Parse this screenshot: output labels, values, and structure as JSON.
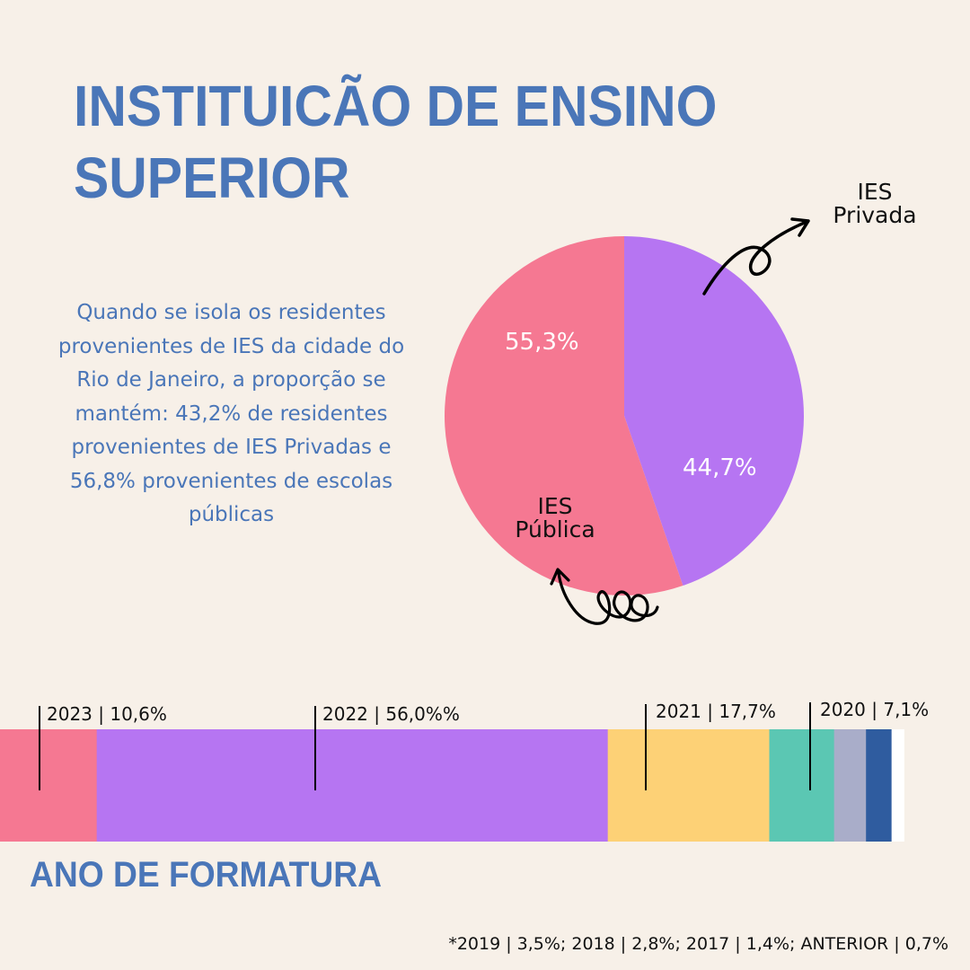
{
  "title": {
    "line1": "INSTITUICÃO DE ENSINO",
    "line2": "SUPERIOR"
  },
  "description": "Quando se isola os residentes provenientes de IES da cidade do Rio de Janeiro, a proporção se mantém: 43,2% de residentes provenientes de IES Privadas e 56,8% provenientes de escolas públicas",
  "colors": {
    "background": "#f7f0e8",
    "title_blue": "#4a76b8",
    "pink": "#f57892",
    "purple": "#b675f2",
    "yellow": "#fdd176",
    "teal": "#5bc7b3",
    "lavender": "#a9adc9",
    "navy": "#2f5c9f",
    "white": "#ffffff"
  },
  "chart_data": [
    {
      "type": "pie",
      "slices": [
        {
          "label": "IES Privada",
          "value": 44.7,
          "display": "44,7%",
          "color": "#b675f2"
        },
        {
          "label": "IES Pública",
          "value": 55.3,
          "display": "55,3%",
          "color": "#f57892"
        }
      ],
      "annotations": {
        "privada_line1": "IES",
        "privada_line2": "Privada",
        "publica_line1": "IES",
        "publica_line2": "Pública"
      }
    },
    {
      "type": "bar",
      "orientation": "horizontal-stacked",
      "title": "ANO DE FORMATURA",
      "segments": [
        {
          "label": "2023",
          "value": 10.6,
          "display": "10,6%",
          "color": "#f57892"
        },
        {
          "label": "2022",
          "value": 56.0,
          "display": "56,0%%",
          "color": "#b675f2"
        },
        {
          "label": "2021",
          "value": 17.7,
          "display": "17,7%",
          "color": "#fdd176"
        },
        {
          "label": "2020",
          "value": 7.1,
          "display": "7,1%",
          "color": "#5bc7b3"
        },
        {
          "label": "2019",
          "value": 3.5,
          "display": "3,5%",
          "color": "#a9adc9"
        },
        {
          "label": "2018",
          "value": 2.8,
          "display": "2,8%",
          "color": "#2f5c9f"
        },
        {
          "label": "2017",
          "value": 1.4,
          "display": "1,4%",
          "color": "#ffffff"
        },
        {
          "label": "ANTERIOR",
          "value": 0.7,
          "display": "0,7%",
          "color": "#f7f0e8"
        }
      ],
      "labels": {
        "l2023": "2023 | 10,6%",
        "l2022": "2022 | 56,0%%",
        "l2021": "2021 | 17,7%",
        "l2020": "2020 | 7,1%"
      },
      "footnote": "*2019 | 3,5%; 2018 | 2,8%; 2017 | 1,4%; ANTERIOR | 0,7%"
    }
  ]
}
